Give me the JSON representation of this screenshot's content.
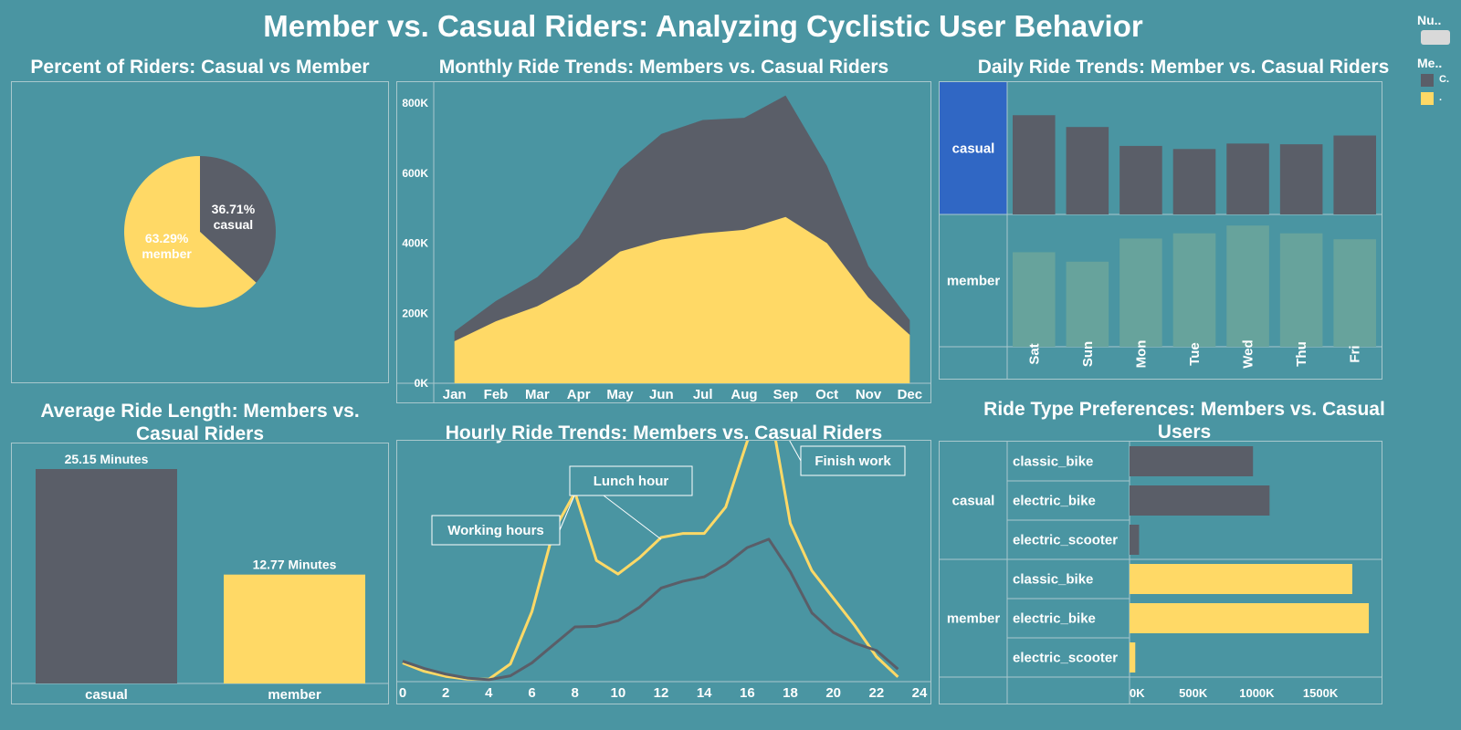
{
  "main_title": "Member vs. Casual Riders: Analyzing Cyclistic User Behavior",
  "colors": {
    "background": "#4a95a2",
    "casual": "#5a5e68",
    "member": "#ffd966",
    "selected": "#3067c4",
    "member_faded": "#67a39c"
  },
  "legend": {
    "num_label": "Nu..",
    "member_label": "Me..",
    "items": [
      {
        "label": "C.",
        "color": "#5a5e68"
      },
      {
        "label": ".",
        "color": "#ffd966"
      }
    ]
  },
  "chart_data": [
    {
      "id": "pie",
      "type": "pie",
      "title": "Percent of Riders: Casual vs Member",
      "slices": [
        {
          "name": "casual",
          "percent_label": "36.71%",
          "value": 36.71
        },
        {
          "name": "member",
          "percent_label": "63.29%",
          "value": 63.29
        }
      ]
    },
    {
      "id": "monthly",
      "type": "area",
      "title": "Monthly Ride Trends: Members vs. Casual Riders",
      "categories": [
        "Jan",
        "Feb",
        "Mar",
        "Apr",
        "May",
        "Jun",
        "Jul",
        "Aug",
        "Sep",
        "Oct",
        "Nov",
        "Dec"
      ],
      "y_ticks": [
        "0K",
        "200K",
        "400K",
        "600K",
        "800K"
      ],
      "ylim": [
        0,
        860000
      ],
      "stacked": true,
      "series": [
        {
          "name": "member",
          "values": [
            120000,
            177000,
            220000,
            283000,
            376000,
            410000,
            428000,
            438000,
            475000,
            400000,
            245000,
            138000
          ]
        },
        {
          "name": "casual",
          "values": [
            28000,
            58000,
            83000,
            133000,
            236000,
            302000,
            324000,
            320000,
            347000,
            221000,
            90000,
            42000
          ]
        }
      ]
    },
    {
      "id": "daily",
      "type": "bar",
      "title": "Daily Ride Trends: Member vs. Casual Riders",
      "categories": [
        "Sat",
        "Sun",
        "Mon",
        "Tue",
        "Wed",
        "Thu",
        "Fri"
      ],
      "ymax": 560000,
      "series": [
        {
          "name": "casual",
          "values": [
            420000,
            370000,
            290000,
            277000,
            300000,
            297000,
            334000
          ]
        },
        {
          "name": "member",
          "values": [
            400000,
            360000,
            458000,
            480000,
            513000,
            480000,
            455000
          ]
        }
      ]
    },
    {
      "id": "avg_length",
      "type": "bar",
      "title": "Average Ride Length: Members vs. Casual Riders",
      "categories": [
        "casual",
        "member"
      ],
      "values": [
        25.15,
        12.77
      ],
      "value_labels": [
        "25.15 Minutes",
        "12.77 Minutes"
      ],
      "ylim": [
        0,
        25.15
      ]
    },
    {
      "id": "hourly",
      "type": "line",
      "title": "Hourly Ride Trends: Members vs. Casual Riders",
      "x_ticks": [
        "0",
        "2",
        "4",
        "6",
        "8",
        "10",
        "12",
        "14",
        "16",
        "18",
        "20",
        "22",
        "24"
      ],
      "x": [
        0,
        1,
        2,
        3,
        4,
        5,
        6,
        7,
        8,
        9,
        10,
        11,
        12,
        13,
        14,
        15,
        16,
        17,
        18,
        19,
        20,
        21,
        22,
        23
      ],
      "xlim": [
        0,
        24
      ],
      "ylim": [
        0,
        430000
      ],
      "series": [
        {
          "name": "member",
          "values": [
            35000,
            20000,
            11000,
            6000,
            6000,
            33000,
            126000,
            269000,
            338000,
            217000,
            193000,
            222000,
            258000,
            265000,
            265000,
            312000,
            429000,
            500000,
            283000,
            199000,
            150000,
            101000,
            46000,
            10000
          ]
        },
        {
          "name": "casual",
          "values": [
            38000,
            25000,
            15000,
            8000,
            5000,
            12000,
            35000,
            67000,
            99000,
            100000,
            110000,
            134000,
            168000,
            180000,
            188000,
            210000,
            240000,
            255000,
            197000,
            124000,
            89000,
            70000,
            57000,
            24000
          ]
        }
      ],
      "annotations": [
        {
          "text": "Working hours",
          "x": 8
        },
        {
          "text": "Lunch hour",
          "x": 12
        },
        {
          "text": "Finish work",
          "x": 17
        }
      ]
    },
    {
      "id": "ride_type",
      "type": "bar",
      "title": "Ride Type Preferences: Members vs. Casual Users",
      "groups": [
        {
          "name": "casual",
          "categories": [
            "classic_bike",
            "electric_bike",
            "electric_scooter"
          ],
          "values": [
            970000,
            1100000,
            75000
          ]
        },
        {
          "name": "member",
          "categories": [
            "classic_bike",
            "electric_bike",
            "electric_scooter"
          ],
          "values": [
            1750000,
            1880000,
            45000
          ]
        }
      ],
      "x_ticks": [
        "0K",
        "500K",
        "1000K",
        "1500K"
      ],
      "xlim": [
        0,
        1980000
      ]
    }
  ]
}
